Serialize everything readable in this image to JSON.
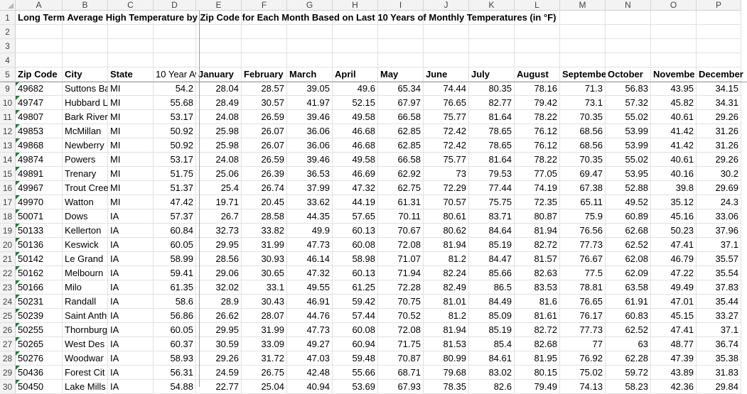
{
  "columns": [
    "A",
    "B",
    "C",
    "D",
    "E",
    "F",
    "G",
    "H",
    "I",
    "J",
    "K",
    "L",
    "M",
    "N",
    "O",
    "P"
  ],
  "title": "Long Term Average High Temperature by Zip Code for Each Month Based on Last 10 Years of Monthly Temperatures (in °F)",
  "headers": [
    "Zip Code",
    "City",
    "State",
    "10 Year Av",
    "January",
    "February",
    "March",
    "April",
    "May",
    "June",
    "July",
    "August",
    "Septembe",
    "October",
    "Novembe",
    "December"
  ],
  "top_row_numbers": [
    "1",
    "2",
    "3",
    "4",
    "5"
  ],
  "rows": [
    {
      "n": "9",
      "zip": "49682",
      "city": "Suttons Ba",
      "state": "MI",
      "vals": [
        "54.2",
        "28.04",
        "28.57",
        "39.05",
        "49.6",
        "65.34",
        "74.44",
        "80.35",
        "78.16",
        "71.3",
        "56.83",
        "43.95",
        "34.15"
      ]
    },
    {
      "n": "10",
      "zip": "49747",
      "city": "Hubbard L",
      "state": "MI",
      "vals": [
        "55.68",
        "28.49",
        "30.57",
        "41.97",
        "52.15",
        "67.97",
        "76.65",
        "82.77",
        "79.42",
        "73.1",
        "57.32",
        "45.82",
        "34.31"
      ]
    },
    {
      "n": "11",
      "zip": "49807",
      "city": "Bark River",
      "state": "MI",
      "vals": [
        "53.17",
        "24.08",
        "26.59",
        "39.46",
        "49.58",
        "66.58",
        "75.77",
        "81.64",
        "78.22",
        "70.35",
        "55.02",
        "40.61",
        "29.26"
      ]
    },
    {
      "n": "12",
      "zip": "49853",
      "city": "McMillan",
      "state": "MI",
      "vals": [
        "50.92",
        "25.98",
        "26.07",
        "36.06",
        "46.68",
        "62.85",
        "72.42",
        "78.65",
        "76.12",
        "68.56",
        "53.99",
        "41.42",
        "31.26"
      ]
    },
    {
      "n": "13",
      "zip": "49868",
      "city": "Newberry",
      "state": "MI",
      "vals": [
        "50.92",
        "25.98",
        "26.07",
        "36.06",
        "46.68",
        "62.85",
        "72.42",
        "78.65",
        "76.12",
        "68.56",
        "53.99",
        "41.42",
        "31.26"
      ]
    },
    {
      "n": "14",
      "zip": "49874",
      "city": "Powers",
      "state": "MI",
      "vals": [
        "53.17",
        "24.08",
        "26.59",
        "39.46",
        "49.58",
        "66.58",
        "75.77",
        "81.64",
        "78.22",
        "70.35",
        "55.02",
        "40.61",
        "29.26"
      ]
    },
    {
      "n": "15",
      "zip": "49891",
      "city": "Trenary",
      "state": "MI",
      "vals": [
        "51.75",
        "25.06",
        "26.39",
        "36.53",
        "46.69",
        "62.92",
        "73",
        "79.53",
        "77.05",
        "69.47",
        "53.95",
        "40.16",
        "30.2"
      ]
    },
    {
      "n": "16",
      "zip": "49967",
      "city": "Trout Cree",
      "state": "MI",
      "vals": [
        "51.37",
        "25.4",
        "26.74",
        "37.99",
        "47.32",
        "62.75",
        "72.29",
        "77.44",
        "74.19",
        "67.38",
        "52.88",
        "39.8",
        "29.69"
      ]
    },
    {
      "n": "17",
      "zip": "49970",
      "city": "Watton",
      "state": "MI",
      "vals": [
        "47.42",
        "19.71",
        "20.45",
        "33.62",
        "44.19",
        "61.31",
        "70.57",
        "75.75",
        "72.35",
        "65.11",
        "49.52",
        "35.12",
        "24.3"
      ]
    },
    {
      "n": "18",
      "zip": "50071",
      "city": "Dows",
      "state": "IA",
      "vals": [
        "57.37",
        "26.7",
        "28.58",
        "44.35",
        "57.65",
        "70.11",
        "80.61",
        "83.71",
        "80.87",
        "75.9",
        "60.89",
        "45.16",
        "33.06"
      ]
    },
    {
      "n": "19",
      "zip": "50133",
      "city": "Kellerton",
      "state": "IA",
      "vals": [
        "60.84",
        "32.73",
        "33.82",
        "49.9",
        "60.13",
        "70.67",
        "80.62",
        "84.64",
        "81.94",
        "76.56",
        "62.68",
        "50.23",
        "37.96"
      ]
    },
    {
      "n": "20",
      "zip": "50136",
      "city": "Keswick",
      "state": "IA",
      "vals": [
        "60.05",
        "29.95",
        "31.99",
        "47.73",
        "60.08",
        "72.08",
        "81.94",
        "85.19",
        "82.72",
        "77.73",
        "62.52",
        "47.41",
        "37.1"
      ]
    },
    {
      "n": "21",
      "zip": "50142",
      "city": "Le Grand",
      "state": "IA",
      "vals": [
        "58.99",
        "28.56",
        "30.93",
        "46.14",
        "58.98",
        "71.07",
        "81.2",
        "84.47",
        "81.57",
        "76.67",
        "62.08",
        "46.79",
        "35.57"
      ]
    },
    {
      "n": "22",
      "zip": "50162",
      "city": "Melbourn",
      "state": "IA",
      "vals": [
        "59.41",
        "29.06",
        "30.65",
        "47.32",
        "60.13",
        "71.94",
        "82.24",
        "85.66",
        "82.63",
        "77.5",
        "62.09",
        "47.22",
        "35.54"
      ]
    },
    {
      "n": "23",
      "zip": "50166",
      "city": "Milo",
      "state": "IA",
      "vals": [
        "61.35",
        "32.02",
        "33.1",
        "49.55",
        "61.25",
        "72.28",
        "82.49",
        "86.5",
        "83.53",
        "78.81",
        "63.58",
        "49.49",
        "37.83"
      ]
    },
    {
      "n": "24",
      "zip": "50231",
      "city": "Randall",
      "state": "IA",
      "vals": [
        "58.6",
        "28.9",
        "30.43",
        "46.91",
        "59.42",
        "70.75",
        "81.01",
        "84.49",
        "81.6",
        "76.65",
        "61.91",
        "47.01",
        "35.44"
      ]
    },
    {
      "n": "25",
      "zip": "50239",
      "city": "Saint Anth",
      "state": "IA",
      "vals": [
        "56.86",
        "26.62",
        "28.07",
        "44.76",
        "57.44",
        "70.52",
        "81.2",
        "85.09",
        "81.61",
        "76.17",
        "60.83",
        "45.15",
        "33.27"
      ]
    },
    {
      "n": "26",
      "zip": "50255",
      "city": "Thornburg",
      "state": "IA",
      "vals": [
        "60.05",
        "29.95",
        "31.99",
        "47.73",
        "60.08",
        "72.08",
        "81.94",
        "85.19",
        "82.72",
        "77.73",
        "62.52",
        "47.41",
        "37.1"
      ]
    },
    {
      "n": "27",
      "zip": "50265",
      "city": "West Des",
      "state": "IA",
      "vals": [
        "60.37",
        "30.59",
        "33.09",
        "49.27",
        "60.94",
        "71.75",
        "81.53",
        "85.4",
        "82.68",
        "77",
        "63",
        "48.77",
        "36.74"
      ]
    },
    {
      "n": "28",
      "zip": "50276",
      "city": "Woodwar",
      "state": "IA",
      "vals": [
        "58.93",
        "29.26",
        "31.72",
        "47.03",
        "59.48",
        "70.87",
        "80.99",
        "84.61",
        "81.95",
        "76.92",
        "62.28",
        "47.39",
        "35.38"
      ]
    },
    {
      "n": "29",
      "zip": "50436",
      "city": "Forest Cit",
      "state": "IA",
      "vals": [
        "56.31",
        "24.59",
        "26.75",
        "42.48",
        "55.66",
        "68.71",
        "79.68",
        "83.02",
        "80.15",
        "75.02",
        "59.72",
        "43.89",
        "31.83"
      ]
    },
    {
      "n": "30",
      "zip": "50450",
      "city": "Lake Mills",
      "state": "IA",
      "vals": [
        "54.88",
        "22.77",
        "25.04",
        "40.94",
        "53.69",
        "67.93",
        "78.35",
        "82.6",
        "79.49",
        "74.13",
        "58.23",
        "42.36",
        "29.84"
      ]
    }
  ]
}
